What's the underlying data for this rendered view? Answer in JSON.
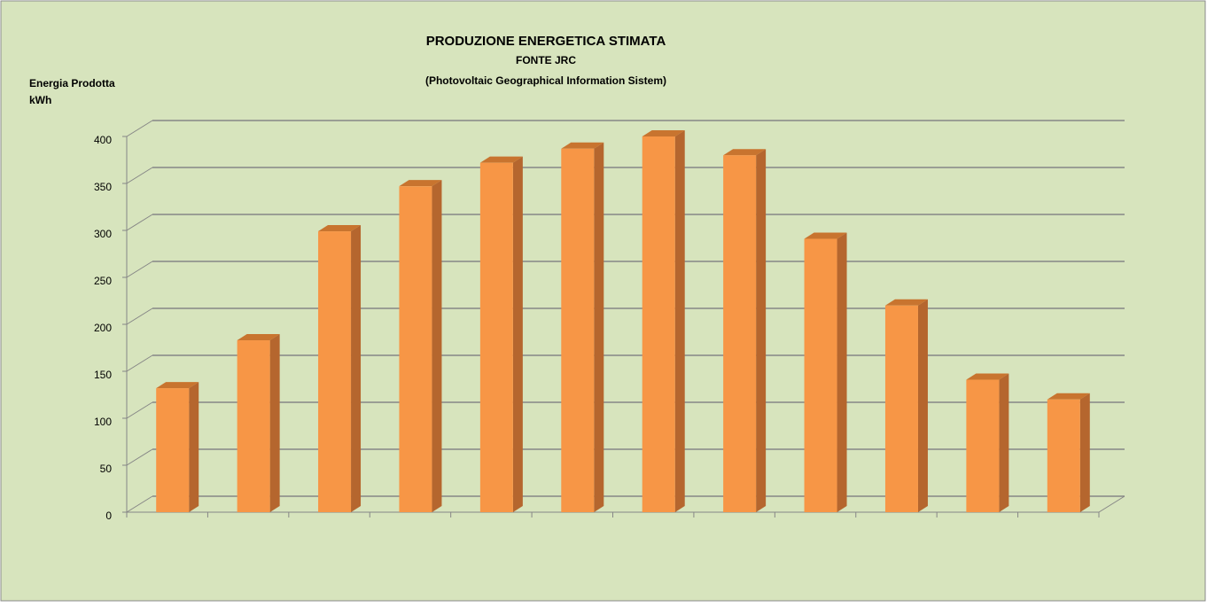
{
  "chart_data": {
    "type": "bar3d",
    "title": "PRODUZIONE ENERGETICA STIMATA",
    "subtitle": "FONTE JRC",
    "source": "(Photovoltaic Geographical Information Sistem)",
    "y_label": "Energia Prodotta",
    "y_unit": "kWh",
    "categories": [
      null,
      null,
      null,
      null,
      null,
      null,
      null,
      null,
      null,
      null,
      null,
      null
    ],
    "values": [
      132,
      183,
      299,
      347,
      372,
      387,
      400,
      380,
      291,
      220,
      141,
      120
    ],
    "color": "#f79646",
    "ylim": [
      0,
      400
    ],
    "yticks": [
      0,
      50,
      100,
      150,
      200,
      250,
      300,
      350,
      400
    ],
    "grid": true
  }
}
